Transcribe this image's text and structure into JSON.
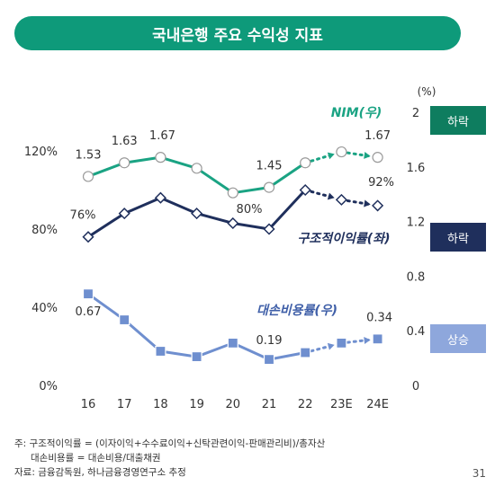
{
  "title": "국내은행 주요 수익성 지표",
  "chart_data": {
    "type": "line",
    "categories": [
      "16",
      "17",
      "18",
      "19",
      "20",
      "21",
      "22",
      "23E",
      "24E"
    ],
    "left_axis": {
      "ticks": [
        "0%",
        "40%",
        "80%",
        "120%"
      ],
      "range": [
        0,
        120
      ]
    },
    "right_axis": {
      "unit": "(%)",
      "ticks": [
        "0",
        "0.4",
        "0.8",
        "1.2",
        "1.6",
        "2"
      ],
      "range": [
        0,
        2.0
      ]
    },
    "series": [
      {
        "name": "NIM(우)",
        "axis": "right",
        "color": "#1aa383",
        "values": [
          1.53,
          1.63,
          1.67,
          1.59,
          1.41,
          1.45,
          1.63,
          1.71,
          1.67
        ],
        "data_labels": [
          {
            "index": 0,
            "text": "1.53"
          },
          {
            "index": 1,
            "text": "1.63"
          },
          {
            "index": 2,
            "text": "1.67"
          },
          {
            "index": 5,
            "text": "1.45"
          },
          {
            "index": 8,
            "text": "1.67"
          }
        ],
        "badge": "하락"
      },
      {
        "name": "구조적이익률(좌)",
        "axis": "left",
        "color": "#1f2f5c",
        "values": [
          76,
          88,
          96,
          88,
          83,
          80,
          100,
          95,
          92
        ],
        "data_labels": [
          {
            "index": 0,
            "text": "76%"
          },
          {
            "index": 5,
            "text": "80%"
          },
          {
            "index": 8,
            "text": "92%"
          }
        ],
        "badge": "하락"
      },
      {
        "name": "대손비용률(우)",
        "axis": "right",
        "color": "#6f8fcf",
        "values": [
          0.67,
          0.48,
          0.25,
          0.21,
          0.31,
          0.19,
          0.24,
          0.31,
          0.34
        ],
        "data_labels": [
          {
            "index": 0,
            "text": "0.67"
          },
          {
            "index": 5,
            "text": "0.19"
          },
          {
            "index": 8,
            "text": "0.34"
          }
        ],
        "badge": "상승"
      }
    ],
    "forecast_from_index": 6
  },
  "footnotes": [
    "주: 구조적이익률 = (이자이익+수수료이익+신탁관련이익-판매관리비)/총자산",
    "대손비용률 = 대손비용/대출채권",
    "자료: 금융감독원, 하나금융경영연구소 추정"
  ],
  "page_number": "31"
}
